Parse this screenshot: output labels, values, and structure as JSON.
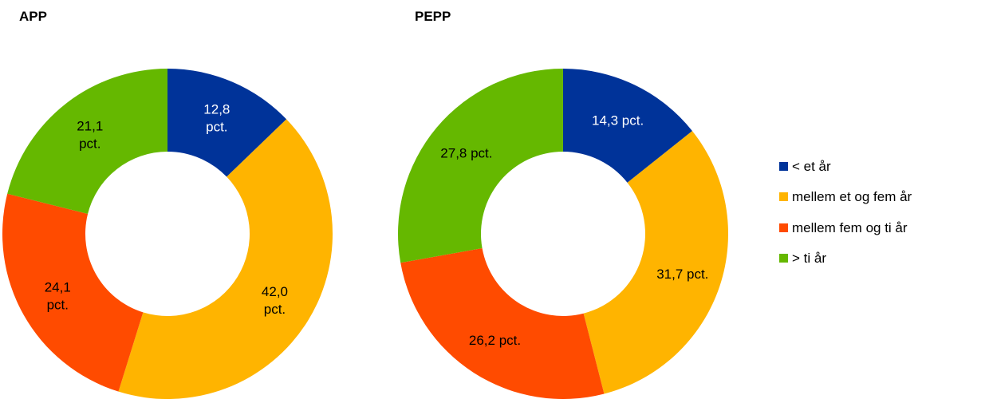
{
  "chart_data": [
    {
      "type": "pie",
      "variant": "donut",
      "title": "APP",
      "categories": [
        "< et år",
        "mellem et og fem år",
        "mellem fem og ti år",
        "> ti år"
      ],
      "values": [
        12.8,
        42.0,
        24.1,
        21.1
      ],
      "labels": [
        [
          "12,8",
          "pct."
        ],
        [
          "42,0",
          "pct."
        ],
        [
          "24,1",
          "pct."
        ],
        [
          "21,1",
          "pct."
        ]
      ],
      "colors": [
        "#003399",
        "#ffb400",
        "#ff4b00",
        "#65b800"
      ]
    },
    {
      "type": "pie",
      "variant": "donut",
      "title": "PEPP",
      "categories": [
        "< et år",
        "mellem et og fem år",
        "mellem fem og ti år",
        "> ti år"
      ],
      "values": [
        14.3,
        31.7,
        26.2,
        27.8
      ],
      "labels": [
        [
          "14,3 pct."
        ],
        [
          "31,7 pct."
        ],
        [
          "26,2 pct."
        ],
        [
          "27,8 pct."
        ]
      ],
      "colors": [
        "#003399",
        "#ffb400",
        "#ff4b00",
        "#65b800"
      ]
    }
  ],
  "legend": {
    "position": "right",
    "items": [
      {
        "label": "< et år",
        "color": "#003399"
      },
      {
        "label": "mellem et og fem år",
        "color": "#ffb400"
      },
      {
        "label": "mellem fem og ti år",
        "color": "#ff4b00"
      },
      {
        "label": "> ti år",
        "color": "#65b800"
      }
    ]
  }
}
